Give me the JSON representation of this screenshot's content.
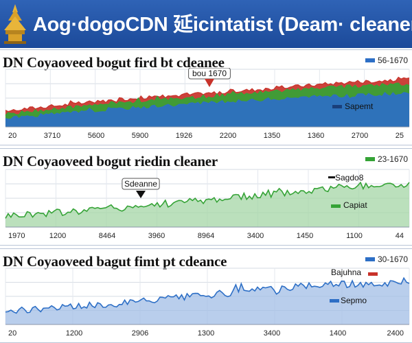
{
  "header": {
    "title": "Aog·dogoCDN 延icintatist (Deam· cleaner)"
  },
  "colors": {
    "header_bg": "#2a5caf",
    "blue_series": "#2d6fc6",
    "blue_fill": "#62a0e6",
    "green_series": "#35a336",
    "green_fill": "#9fd88c",
    "red_series": "#c8322a"
  },
  "chart_data": [
    {
      "type": "area",
      "title": "DN Coyaoveed bogut fird bt cdeanee",
      "x_tick_labels": [
        "20",
        "3710",
        "5600",
        "5900",
        "1926",
        "2200",
        "1350",
        "1360",
        "2700",
        "25"
      ],
      "legend": [
        {
          "label": "56-1670",
          "color": "#2d6fc6"
        }
      ],
      "annotations": [
        {
          "text": "bou 1670",
          "x": 2200,
          "arrow_color": "#c8322a"
        },
        {
          "text": "Sapemt",
          "marker_color": "#1a3f7a"
        }
      ],
      "series": [
        {
          "color": "#c8322a",
          "values": [
            28,
            33,
            38,
            43,
            48,
            52,
            55,
            58,
            62,
            66,
            70,
            74,
            78,
            80,
            83
          ]
        },
        {
          "color": "#35a336",
          "values": [
            22,
            27,
            32,
            37,
            42,
            46,
            49,
            52,
            56,
            60,
            64,
            67,
            70,
            72,
            74
          ]
        },
        {
          "color": "#2d6fc6",
          "values": [
            15,
            19,
            23,
            27,
            31,
            35,
            38,
            41,
            44,
            47,
            50,
            52,
            54,
            56,
            58
          ]
        }
      ],
      "ylim": [
        0,
        100
      ],
      "grid": true
    },
    {
      "type": "area",
      "title": "DN Coyaoveed bogut riedin cleaner",
      "x_tick_labels": [
        "1970",
        "1200",
        "8464",
        "3960",
        "8964",
        "3400",
        "1450",
        "1100",
        "44"
      ],
      "legend": [
        {
          "label": "23-1670",
          "color": "#35a336"
        }
      ],
      "annotations": [
        {
          "text": "Sdeanne",
          "arrow_color": "#111111"
        },
        {
          "text": "Sagdo8",
          "marker_color": "#111111"
        },
        {
          "text": "Capiat",
          "marker_color": "#35a336"
        }
      ],
      "series": [
        {
          "color": "#35a336",
          "values": [
            20,
            23,
            26,
            30,
            34,
            38,
            43,
            47,
            52,
            56,
            61,
            66,
            70,
            73,
            74
          ]
        }
      ],
      "ylim": [
        0,
        100
      ],
      "grid": true
    },
    {
      "type": "area",
      "title": "DN Coyaoveed bagut fimt pt cdeance",
      "x_tick_labels": [
        "20",
        "1200",
        "2906",
        "1300",
        "3400",
        "1400",
        "2400"
      ],
      "legend": [
        {
          "label": "30-1670",
          "color": "#2d6fc6"
        }
      ],
      "annotations": [
        {
          "text": "Bajuhna",
          "marker_color": "#c8322a"
        },
        {
          "text": "Sepmo",
          "marker_color": "#2d6fc6"
        }
      ],
      "series": [
        {
          "color": "#2d6fc6",
          "values": [
            24,
            27,
            30,
            34,
            38,
            42,
            47,
            52,
            57,
            61,
            66,
            70,
            72,
            73,
            73
          ]
        }
      ],
      "ylim": [
        0,
        100
      ],
      "grid": true
    }
  ]
}
